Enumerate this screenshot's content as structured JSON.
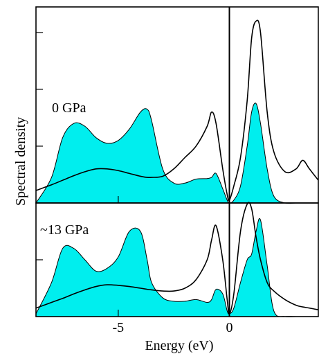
{
  "chart_data": [
    {
      "type": "line",
      "annotation": "0 GPa",
      "y_label": "Spectral density",
      "x": [
        -8.7,
        -8,
        -7.5,
        -7,
        -6.5,
        -6,
        -5.5,
        -5,
        -4.5,
        -4,
        -3.7,
        -3.5,
        -3,
        -2.5,
        -2,
        -1.5,
        -1,
        -0.8,
        -0.6,
        -0.3,
        -0.1,
        0,
        0.2,
        0.5,
        0.8,
        1,
        1.2,
        1.4,
        1.7,
        2,
        2.5,
        3,
        3.3,
        3.6,
        4
      ],
      "series": [
        {
          "color": "#00eeee",
          "fill": true,
          "values": [
            0,
            0.45,
            1.15,
            1.4,
            1.35,
            1.15,
            1.05,
            1.1,
            1.3,
            1.6,
            1.65,
            1.45,
            0.6,
            0.35,
            0.35,
            0.42,
            0.43,
            0.45,
            0.52,
            0.25,
            0.05,
            0,
            0.05,
            0.3,
            1.0,
            1.6,
            1.75,
            1.4,
            0.6,
            0.12,
            0,
            0,
            0,
            0,
            0
          ]
        },
        {
          "color": "#000000",
          "fill": false,
          "values": [
            0.22,
            0.32,
            0.4,
            0.48,
            0.55,
            0.6,
            0.6,
            0.57,
            0.52,
            0.47,
            0.45,
            0.45,
            0.47,
            0.6,
            0.8,
            1.0,
            1.35,
            1.6,
            1.4,
            0.6,
            0.15,
            0.05,
            0.3,
            0.8,
            1.8,
            2.9,
            3.2,
            3.0,
            1.6,
            0.9,
            0.55,
            0.6,
            0.75,
            0.6,
            0.4
          ]
        }
      ],
      "xlim": [
        -8.7,
        4
      ],
      "xticks": [
        -5,
        0
      ],
      "ylim": [
        0,
        3.45
      ],
      "yticks": [
        1,
        2,
        3
      ],
      "vline": 0
    },
    {
      "type": "line",
      "annotation": "~13 GPa",
      "x_label": "Energy (eV)",
      "x": [
        -8.7,
        -8,
        -7.5,
        -7,
        -6.5,
        -6,
        -5.5,
        -5,
        -4.5,
        -4,
        -3.7,
        -3.5,
        -3,
        -2.5,
        -2,
        -1.5,
        -1,
        -0.8,
        -0.6,
        -0.3,
        -0.1,
        0,
        0.2,
        0.5,
        0.8,
        1,
        1.2,
        1.4,
        1.7,
        2,
        2.5,
        3,
        3.3,
        3.6,
        4
      ],
      "series": [
        {
          "color": "#00eeee",
          "fill": true,
          "values": [
            0.05,
            0.6,
            1.2,
            1.2,
            1.0,
            0.8,
            0.85,
            1.05,
            1.5,
            1.5,
            1.0,
            0.6,
            0.33,
            0.27,
            0.27,
            0.3,
            0.25,
            0.3,
            0.48,
            0.4,
            0.1,
            0.05,
            0.15,
            0.6,
            1.0,
            1.1,
            1.5,
            1.7,
            0.9,
            0.1,
            0,
            0,
            0,
            0,
            0
          ]
        },
        {
          "color": "#000000",
          "fill": false,
          "values": [
            0.15,
            0.25,
            0.32,
            0.4,
            0.47,
            0.53,
            0.56,
            0.55,
            0.53,
            0.5,
            0.48,
            0.47,
            0.45,
            0.45,
            0.5,
            0.65,
            1.0,
            1.35,
            1.6,
            1.0,
            0.3,
            0.05,
            0.4,
            1.5,
            1.98,
            1.9,
            1.4,
            1.0,
            0.6,
            0.45,
            0.3,
            0.2,
            0.17,
            0.15,
            0.12
          ]
        }
      ],
      "xlim": [
        -8.7,
        4
      ],
      "xticks": [
        -5,
        0
      ],
      "ylim": [
        0,
        2
      ],
      "yticks": [
        1
      ],
      "vline": 0
    }
  ]
}
